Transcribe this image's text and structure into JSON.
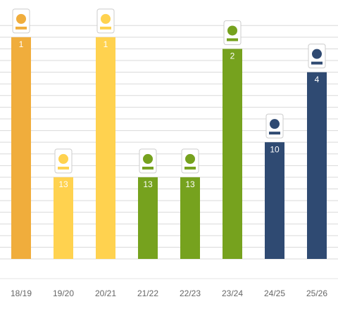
{
  "chart_data": {
    "type": "bar",
    "categories": [
      "18/19",
      "19/20",
      "20/21",
      "21/22",
      "22/23",
      "23/24",
      "24/25",
      "25/26"
    ],
    "values": [
      1,
      13,
      1,
      13,
      13,
      2,
      10,
      4
    ],
    "colors": [
      "#f0ad3c",
      "#ffd24f",
      "#ffd24f",
      "#76a21e",
      "#76a21e",
      "#76a21e",
      "#2f4a72",
      "#2f4a72"
    ],
    "ylim": [
      20,
      0
    ],
    "inverted": true,
    "yticks": [
      0,
      1,
      2,
      3,
      4,
      5,
      6,
      7,
      8,
      9,
      10,
      11,
      12,
      13,
      14,
      15,
      16,
      17,
      18,
      19,
      20
    ],
    "grid": true
  }
}
